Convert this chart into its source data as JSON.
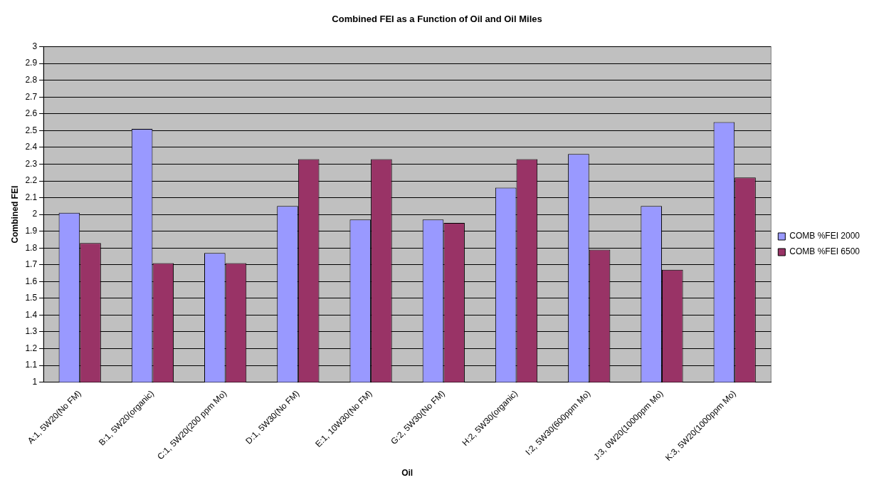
{
  "chart_data": {
    "type": "bar",
    "title": "Combined FEI as a Function of Oil and Oil Miles",
    "xlabel": "Oil",
    "ylabel": "Combined FEI",
    "categories": [
      "A:1, 5W20(No FM)",
      "B:1, 5W20(organic)",
      "C:1, 5W20(200 ppm Mo)",
      "D:1, 5W30(No FM)",
      "E:1, 10W30(No FM)",
      "G:2, 5W30(No FM)",
      "H:2, 5W30(organic)",
      "I:2, 5W30(600ppm Mo)",
      "J:3, 0W20(1000ppm Mo)",
      "K:3, 5W20(1000ppm Mo)"
    ],
    "series": [
      {
        "name": "COMB %FEI 2000",
        "color": "#9999ff",
        "values": [
          2.01,
          2.51,
          1.77,
          2.05,
          1.97,
          1.97,
          2.16,
          2.36,
          2.05,
          2.55
        ]
      },
      {
        "name": "COMB %FEI 6500",
        "color": "#993366",
        "values": [
          1.83,
          1.71,
          1.71,
          2.33,
          2.33,
          1.95,
          2.33,
          1.79,
          1.67,
          2.22
        ]
      }
    ],
    "ylim": [
      1,
      3
    ],
    "yticks": [
      1,
      1.1,
      1.2,
      1.3,
      1.4,
      1.5,
      1.6,
      1.7,
      1.8,
      1.9,
      2,
      2.1,
      2.2,
      2.3,
      2.4,
      2.5,
      2.6,
      2.7,
      2.8,
      2.9,
      3
    ],
    "grid": "y",
    "legend": "right"
  }
}
